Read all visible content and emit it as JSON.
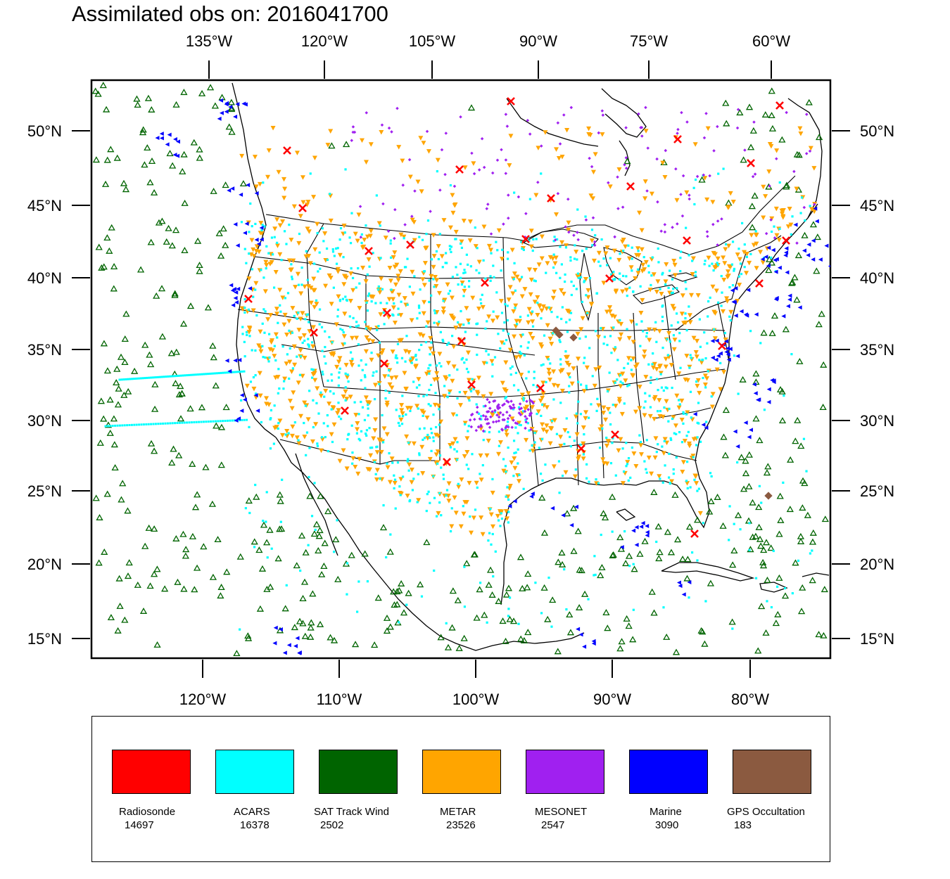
{
  "title": "Assimilated obs on: 2016041700",
  "axes": {
    "top_lon_labels": [
      "135°W",
      "120°W",
      "105°W",
      "90°W",
      "75°W",
      "60°W"
    ],
    "bottom_lon_labels": [
      "120°W",
      "110°W",
      "100°W",
      "90°W",
      "80°W"
    ],
    "left_lat_labels": [
      "50°N",
      "45°N",
      "40°N",
      "35°N",
      "30°N",
      "25°N",
      "20°N",
      "15°N"
    ],
    "right_lat_labels": [
      "50°N",
      "45°N",
      "40°N",
      "35°N",
      "30°N",
      "25°N",
      "20°N",
      "15°N"
    ]
  },
  "legend": {
    "items": [
      {
        "name": "Radiosonde",
        "count": "14697",
        "color": "#ff0000"
      },
      {
        "name": "ACARS",
        "count": "16378",
        "color": "#00ffff"
      },
      {
        "name": "SAT Track Wind",
        "count": "2502",
        "color": "#006400"
      },
      {
        "name": "METAR",
        "count": "23526",
        "color": "#ffa500"
      },
      {
        "name": "MESONET",
        "count": "2547",
        "color": "#a020f0"
      },
      {
        "name": "Marine",
        "count": "3090",
        "color": "#0000ff"
      },
      {
        "name": "GPS Occultation",
        "count": "183",
        "color": "#8b5a40"
      }
    ]
  },
  "colors": {
    "radiosonde": "#ff0000",
    "acars": "#00ffff",
    "sat_track_wind": "#006400",
    "metar": "#ffa500",
    "mesonet": "#a020f0",
    "marine": "#0000ff",
    "gps": "#8b5a40"
  }
}
